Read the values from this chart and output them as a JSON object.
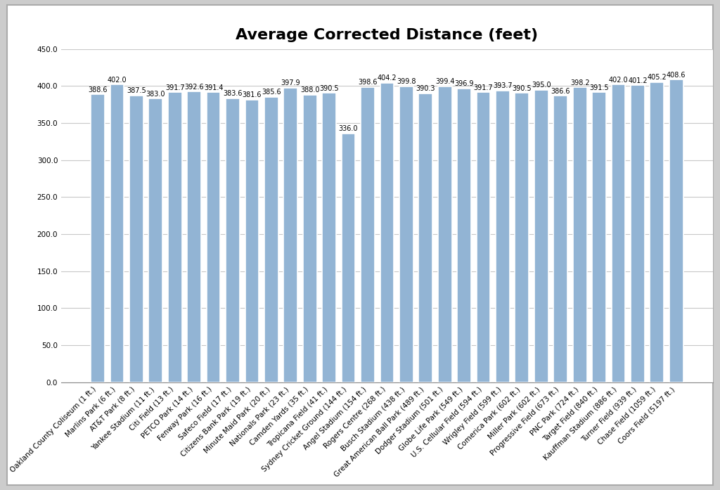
{
  "title": "Average Corrected Distance (feet)",
  "categories": [
    "Oakland County Coliseum (1 ft.)",
    "Marlins Park (6 ft.)",
    "AT&T Park (8 ft.)",
    "Yankee Stadium (11 ft.)",
    "Citi Field (13 ft.)",
    "PETCO Park (14 ft.)",
    "Fenway Park (16 ft.)",
    "Safeco Field (17 ft.)",
    "Citizens Bank Park (19 ft.)",
    "Minute Maid Park (20 ft.)",
    "Nationals Park (23 ft.)",
    "Camden Yards (35 ft.)",
    "Tropicana Field (41 ft.)",
    "Sydney Cricket Ground (144 ft.)",
    "Angel Stadium (154 ft.)",
    "Rogers Centre (268 ft.)",
    "Busch Stadium (438 ft.)",
    "Great American Ball Park (489 ft.)",
    "Dodger Stadium (501 ft.)",
    "Globe Life Park (549 ft.)",
    "U.S. Cellular Field (594 ft.)",
    "Wrigley Field (599 ft.)",
    "Comerica Park (602 ft.)",
    "Miller Park (602 ft.)",
    "Progressive Field (673 ft.)",
    "PNC Park (724 ft.)",
    "Target Field (840 ft.)",
    "Kauffman Stadium (886 ft.)",
    "Turner Field (939 ft.)",
    "Chase Field (1059 ft.)",
    "Coors Field (5197 ft.)"
  ],
  "values": [
    388.6,
    402.0,
    387.5,
    383.0,
    391.7,
    392.6,
    391.4,
    383.6,
    381.6,
    385.6,
    397.9,
    388.0,
    390.5,
    336.0,
    398.6,
    404.2,
    399.8,
    390.3,
    399.4,
    396.9,
    391.7,
    393.7,
    390.5,
    395.0,
    386.6,
    398.2,
    391.5,
    402.0,
    401.2,
    405.2,
    408.6
  ],
  "bar_color": "#92B4D4",
  "bar_edge_color": "#FFFFFF",
  "background_color": "#FFFFFF",
  "figure_border_color": "#AAAAAA",
  "grid_color": "#C8C8C8",
  "ylim": [
    0,
    450
  ],
  "yticks": [
    0.0,
    50.0,
    100.0,
    150.0,
    200.0,
    250.0,
    300.0,
    350.0,
    400.0,
    450.0
  ],
  "title_fontsize": 16,
  "value_fontsize": 7.0,
  "tick_fontsize": 7.5,
  "bar_width": 0.72
}
